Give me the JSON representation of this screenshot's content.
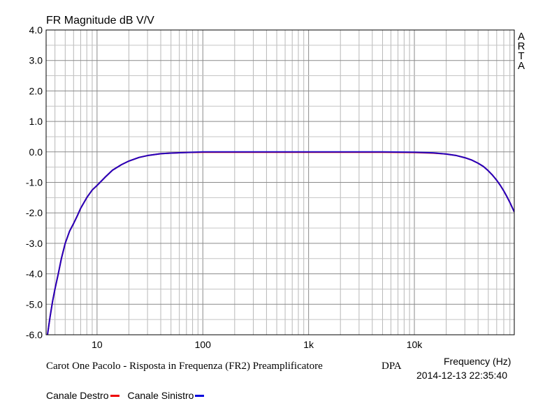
{
  "chart_data": {
    "type": "line",
    "title": "FR Magnitude dB V/V",
    "xlabel": "Frequency (Hz)",
    "ylabel": "",
    "xscale": "log",
    "xlim": [
      3.3,
      88000
    ],
    "ylim": [
      -6.0,
      4.0
    ],
    "grid": true,
    "y_ticks": [
      "4.0",
      "3.0",
      "2.0",
      "1.0",
      "0.0",
      "-1.0",
      "-2.0",
      "-3.0",
      "-4.0",
      "-5.0",
      "-6.0"
    ],
    "x_ticks": [
      "10",
      "100",
      "1k",
      "10k"
    ],
    "brand_letters": [
      "A",
      "R",
      "T",
      "A"
    ],
    "caption": "Carot One Pacolo - Risposta in Frequenza (FR2) Preamplificatore",
    "tag": "DPA",
    "timestamp": "2014-12-13  22:35:40",
    "legend_position": "bottom-left",
    "series": [
      {
        "name": "Canale Destro",
        "color": "#ee0000",
        "x": [
          3.4,
          3.6,
          3.8,
          4.0,
          4.3,
          4.6,
          5.0,
          5.5,
          6.0,
          6.5,
          7.0,
          8.0,
          9.0,
          10,
          12,
          14,
          17,
          20,
          25,
          30,
          40,
          50,
          70,
          100,
          200,
          500,
          1000,
          2000,
          5000,
          10000,
          15000,
          20000,
          25000,
          30000,
          35000,
          40000,
          45000,
          50000,
          55000,
          60000,
          65000,
          70000,
          75000,
          80000,
          88000
        ],
        "y": [
          -6.0,
          -5.4,
          -4.9,
          -4.5,
          -4.0,
          -3.5,
          -3.0,
          -2.6,
          -2.35,
          -2.1,
          -1.85,
          -1.5,
          -1.25,
          -1.1,
          -0.82,
          -0.6,
          -0.42,
          -0.3,
          -0.18,
          -0.12,
          -0.06,
          -0.04,
          -0.02,
          -0.01,
          -0.01,
          -0.01,
          -0.01,
          -0.01,
          -0.01,
          -0.02,
          -0.04,
          -0.07,
          -0.12,
          -0.19,
          -0.27,
          -0.37,
          -0.48,
          -0.62,
          -0.77,
          -0.93,
          -1.1,
          -1.28,
          -1.47,
          -1.66,
          -1.97
        ]
      },
      {
        "name": "Canale Sinistro",
        "color": "#0000dd",
        "x": [
          3.4,
          3.6,
          3.8,
          4.0,
          4.3,
          4.6,
          5.0,
          5.5,
          6.0,
          6.5,
          7.0,
          8.0,
          9.0,
          10,
          12,
          14,
          17,
          20,
          25,
          30,
          40,
          50,
          70,
          100,
          200,
          500,
          1000,
          2000,
          5000,
          10000,
          15000,
          20000,
          25000,
          30000,
          35000,
          40000,
          45000,
          50000,
          55000,
          60000,
          65000,
          70000,
          75000,
          80000,
          88000
        ],
        "y": [
          -6.0,
          -5.4,
          -4.9,
          -4.5,
          -4.0,
          -3.5,
          -3.0,
          -2.6,
          -2.35,
          -2.1,
          -1.85,
          -1.5,
          -1.25,
          -1.1,
          -0.82,
          -0.6,
          -0.42,
          -0.3,
          -0.18,
          -0.12,
          -0.06,
          -0.04,
          -0.02,
          -0.0,
          -0.0,
          -0.0,
          -0.0,
          -0.0,
          -0.0,
          -0.01,
          -0.03,
          -0.07,
          -0.12,
          -0.19,
          -0.27,
          -0.37,
          -0.48,
          -0.62,
          -0.77,
          -0.93,
          -1.1,
          -1.28,
          -1.47,
          -1.66,
          -1.97
        ]
      }
    ]
  }
}
